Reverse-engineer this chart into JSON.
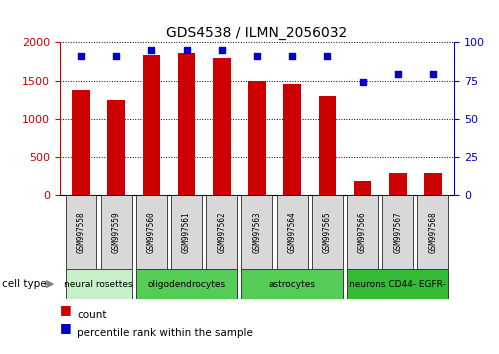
{
  "title": "GDS4538 / ILMN_2056032",
  "samples": [
    "GSM997558",
    "GSM997559",
    "GSM997560",
    "GSM997561",
    "GSM997562",
    "GSM997563",
    "GSM997564",
    "GSM997565",
    "GSM997566",
    "GSM997567",
    "GSM997568"
  ],
  "counts": [
    1370,
    1240,
    1840,
    1860,
    1800,
    1490,
    1450,
    1300,
    175,
    290,
    290
  ],
  "percentile_ranks": [
    91,
    91,
    95,
    95,
    95,
    91,
    91,
    91,
    74,
    79,
    79
  ],
  "ylim_left": [
    0,
    2000
  ],
  "ylim_right": [
    0,
    100
  ],
  "yticks_left": [
    0,
    500,
    1000,
    1500,
    2000
  ],
  "yticks_right": [
    0,
    25,
    50,
    75,
    100
  ],
  "cell_type_groups": [
    {
      "label": "neural rosettes",
      "start": 0,
      "end": 1,
      "color": "#c8f0c8"
    },
    {
      "label": "oligodendrocytes",
      "start": 2,
      "end": 4,
      "color": "#66dd66"
    },
    {
      "label": "astrocytes",
      "start": 5,
      "end": 7,
      "color": "#66dd66"
    },
    {
      "label": "neurons CD44- EGFR-",
      "start": 8,
      "end": 10,
      "color": "#44cc44"
    }
  ],
  "bar_color": "#cc0000",
  "dot_color": "#0000cc",
  "bg_color": "#ffffff",
  "left_axis_color": "#cc0000",
  "right_axis_color": "#0000cc",
  "bar_width": 0.5
}
